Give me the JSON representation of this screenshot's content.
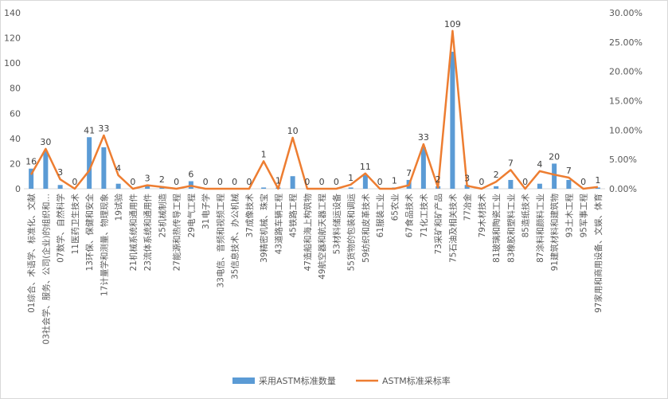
{
  "chart_data": {
    "type": "bar",
    "categories": [
      "01综合、术语学、标准化、文献",
      "03社会学、服务、公司(企业)的组织和…",
      "07数学、自然科学",
      "11医药卫生技术",
      "13环保、保健和安全",
      "17计量学和测量、物理现象",
      "19试验",
      "21机械系统和通用件",
      "23流体系统和通用件",
      "25机械制造",
      "27能源和热传导工程",
      "29电气工程",
      "31电子学",
      "33电信、音频和视频工程",
      "35信息技术、办公机械",
      "37成像技术",
      "39精密机械、珠宝",
      "43道路车辆工程",
      "45铁路工程",
      "47造船和海上构筑物",
      "49航空器和航天器工程",
      "53材料储运设备",
      "55货物的包装和调运",
      "59纺织和皮革技术",
      "61服装工业",
      "65农业",
      "67食品技术",
      "71化工技术",
      "73采矿和矿产品",
      "75石油及相关技术",
      "77冶金",
      "79木材技术",
      "81玻璃和陶瓷工业",
      "83橡胶和塑料工业",
      "85造纸技术",
      "87涂料和颜料工业",
      "91建筑材料和建筑物",
      "93土木工程",
      "95军事工程",
      "97家用和商用设备、文娱、体育"
    ],
    "series": [
      {
        "name": "采用ASTM标准数量",
        "type": "bar",
        "axis": "left",
        "color": "#5B9BD5",
        "values": [
          16,
          30,
          3,
          0,
          41,
          33,
          4,
          0,
          3,
          2,
          0,
          6,
          0,
          0,
          0,
          0,
          1,
          1,
          10,
          0,
          0,
          0,
          1,
          11,
          0,
          1,
          7,
          33,
          2,
          109,
          3,
          0,
          2,
          7,
          0,
          4,
          20,
          7,
          0,
          1
        ]
      },
      {
        "name": "ASTM标准采标率",
        "type": "line",
        "axis": "right",
        "color": "#ED7D31",
        "values": [
          2.4,
          6.8,
          1.6,
          0.0,
          3.1,
          9.1,
          2.3,
          0.0,
          0.6,
          0.3,
          0.0,
          0.5,
          0.0,
          0.0,
          0.0,
          0.0,
          4.7,
          0.0,
          8.7,
          0.0,
          0.0,
          0.0,
          0.7,
          2.6,
          0.0,
          0.0,
          0.6,
          7.6,
          0.2,
          26.9,
          0.5,
          0.0,
          1.2,
          3.2,
          0.0,
          3.0,
          2.4,
          1.9,
          0.0,
          0.3
        ]
      }
    ],
    "left_axis": {
      "ylim": [
        0,
        140
      ],
      "ticks": [
        "0",
        "20",
        "40",
        "60",
        "80",
        "100",
        "120",
        "140"
      ]
    },
    "right_axis": {
      "ylim": [
        0,
        30
      ],
      "ticks": [
        "0.00%",
        "5.00%",
        "10.00%",
        "15.00%",
        "20.00%",
        "25.00%",
        "30.00%"
      ]
    },
    "data_labels": true,
    "grid": false,
    "legend": "bottom"
  }
}
